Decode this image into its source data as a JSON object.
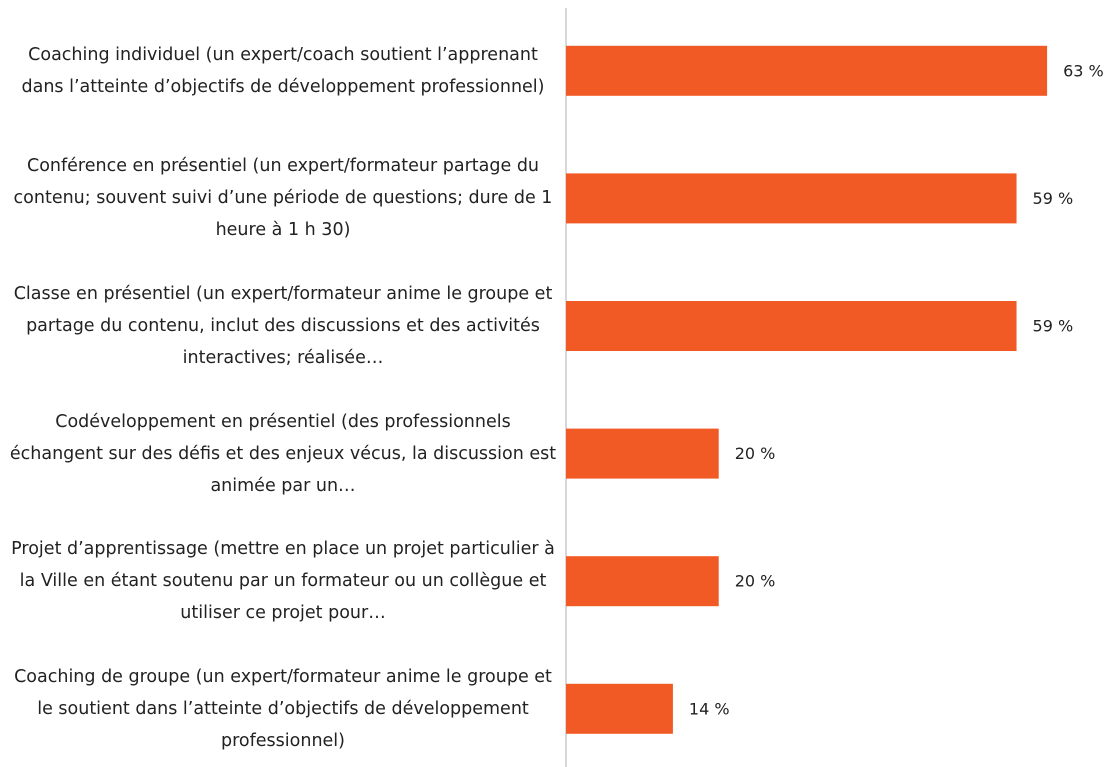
{
  "chart_data": {
    "type": "bar",
    "orientation": "horizontal",
    "categories": [
      "Coaching individuel (un expert/coach soutient l’apprenant dans l’atteinte d’objectifs de développement professionnel)",
      "Conférence en présentiel (un expert/formateur partage du contenu; souvent suivi d’une période de questions; dure de 1 heure à 1 h 30)",
      "Classe en présentiel (un expert/formateur anime le groupe et partage du contenu, inclut des discussions et des activités interactives; réalisée…",
      "Codéveloppement en présentiel (des professionnels échangent sur des défis et des enjeux vécus, la discussion est animée par un…",
      "Projet d’apprentissage (mettre en place un projet particulier à la Ville en étant soutenu par un formateur ou un collègue et utiliser ce projet pour…",
      "Coaching de groupe (un expert/formateur anime le groupe et le soutient dans l’atteinte d’objectifs de développement professionnel)"
    ],
    "values": [
      63,
      59,
      59,
      20,
      20,
      14
    ],
    "value_labels": [
      "63 %",
      "59 %",
      "59 %",
      "20 %",
      "20 %",
      "14 %"
    ],
    "color": "#f15a24",
    "xlim": [
      0,
      66
    ]
  }
}
